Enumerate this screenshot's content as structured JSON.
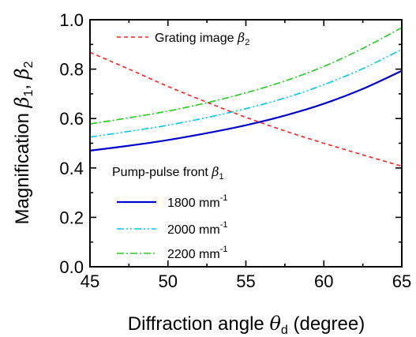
{
  "chart_data": {
    "type": "line",
    "xlabel_main": "Diffraction angle ",
    "xlabel_symbol": "θ",
    "xlabel_sub": "d",
    "xlabel_unit": " (degree)",
    "ylabel_main": "Magnification ",
    "ylabel_symbol": "β",
    "ylabel_sub1": "1",
    "ylabel_sep": ", ",
    "ylabel_sub2": "2",
    "xlim": [
      45,
      65
    ],
    "ylim": [
      0.0,
      1.0
    ],
    "xticks": [
      "45",
      "50",
      "55",
      "60",
      "65"
    ],
    "yticks": [
      "0.0",
      "0.2",
      "0.4",
      "0.6",
      "0.8",
      "1.0"
    ],
    "grid": false,
    "x": [
      45,
      47.5,
      50,
      52.5,
      55,
      57.5,
      60,
      62.5,
      65
    ],
    "series": [
      {
        "name": "1800 mm",
        "name_sup": "-1",
        "group": "pump",
        "color": "#0000cc",
        "dash": "solid",
        "values": [
          0.47,
          0.49,
          0.513,
          0.541,
          0.573,
          0.612,
          0.66,
          0.72,
          0.793
        ]
      },
      {
        "name": "2000 mm",
        "name_sup": "-1",
        "group": "pump",
        "color": "#00c8e6",
        "dash": "dash-dot-dot",
        "values": [
          0.525,
          0.548,
          0.573,
          0.604,
          0.64,
          0.683,
          0.737,
          0.802,
          0.88
        ]
      },
      {
        "name": "2200 mm",
        "name_sup": "-1",
        "group": "pump",
        "color": "#22cc22",
        "dash": "dash-dot",
        "values": [
          0.578,
          0.603,
          0.63,
          0.664,
          0.704,
          0.752,
          0.811,
          0.884,
          0.968
        ]
      },
      {
        "name": "Grating image ",
        "name_symbol": "β",
        "name_sub": "2",
        "group": "grating",
        "color": "#ff2020",
        "dash": "dashed",
        "values": [
          0.868,
          0.8,
          0.73,
          0.666,
          0.605,
          0.55,
          0.5,
          0.453,
          0.407
        ]
      }
    ],
    "legend_top": {
      "placement": "top-left"
    },
    "legend_bottom": {
      "placement": "bottom-left",
      "title": "Pump-pulse front ",
      "title_symbol": "β",
      "title_sub": "1"
    }
  }
}
